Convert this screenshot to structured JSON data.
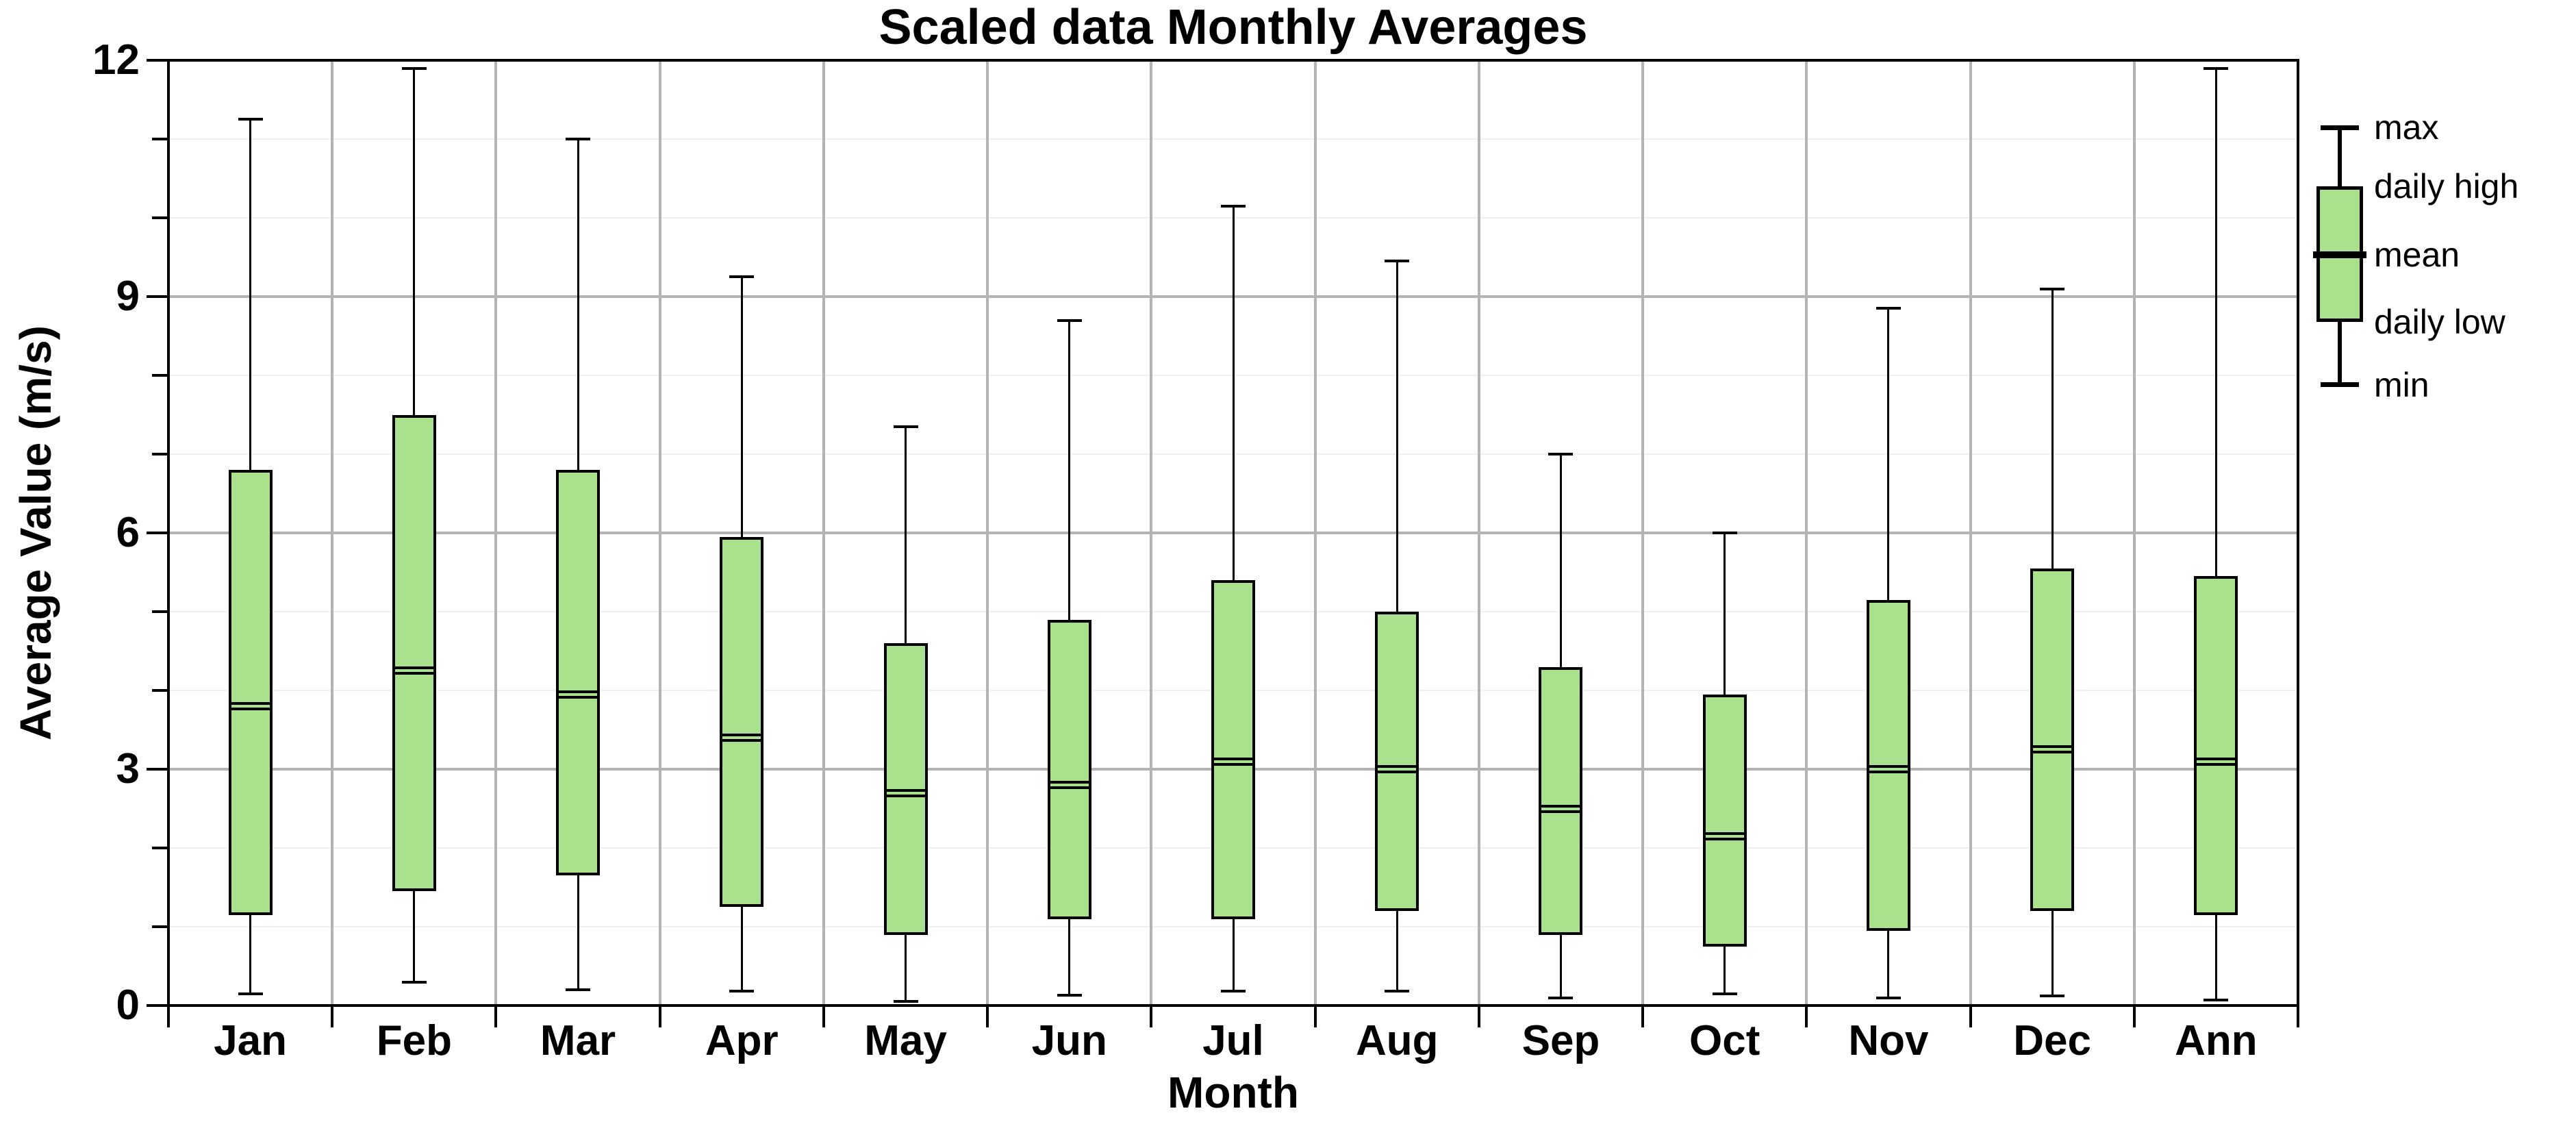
{
  "title": "Scaled data Monthly Averages",
  "chart_data": {
    "type": "boxplot",
    "title": "Scaled data Monthly Averages",
    "xlabel": "Month",
    "ylabel": "Average Value (m/s)",
    "ylim": [
      0,
      12
    ],
    "yticks_major": [
      0,
      3,
      6,
      9,
      12
    ],
    "ytick_minor_step": 1,
    "grid": true,
    "legend_position": "right-outside",
    "legend_items": [
      "max",
      "daily high",
      "mean",
      "daily low",
      "min"
    ],
    "categories": [
      "Jan",
      "Feb",
      "Mar",
      "Apr",
      "May",
      "Jun",
      "Jul",
      "Aug",
      "Sep",
      "Oct",
      "Nov",
      "Dec",
      "Ann"
    ],
    "series": [
      {
        "name": "max",
        "values": [
          11.25,
          11.9,
          11.0,
          9.25,
          7.35,
          8.7,
          10.15,
          9.45,
          7.0,
          6.0,
          8.85,
          9.1,
          11.9
        ]
      },
      {
        "name": "daily high",
        "values": [
          6.8,
          7.5,
          6.8,
          5.95,
          4.6,
          4.9,
          5.4,
          5.0,
          4.3,
          3.95,
          5.15,
          5.55,
          5.45
        ]
      },
      {
        "name": "mean",
        "values": [
          3.8,
          4.25,
          3.95,
          3.4,
          2.7,
          2.8,
          3.1,
          3.0,
          2.5,
          2.15,
          3.0,
          3.25,
          3.1
        ]
      },
      {
        "name": "daily low",
        "values": [
          1.15,
          1.45,
          1.65,
          1.25,
          0.9,
          1.1,
          1.1,
          1.2,
          0.9,
          0.75,
          0.95,
          1.2,
          1.15
        ]
      },
      {
        "name": "min",
        "values": [
          0.15,
          0.3,
          0.2,
          0.18,
          0.05,
          0.13,
          0.18,
          0.18,
          0.1,
          0.15,
          0.1,
          0.12,
          0.07
        ]
      }
    ],
    "colors": {
      "box_fill": "#a9e18c",
      "box_stroke": "#000000",
      "whisker": "#000000",
      "grid_minor": "#f0f0f0",
      "grid_major": "#b3b3b3",
      "grid_vertical": "#b3b3b3",
      "axis": "#000000",
      "background": "#ffffff"
    }
  }
}
